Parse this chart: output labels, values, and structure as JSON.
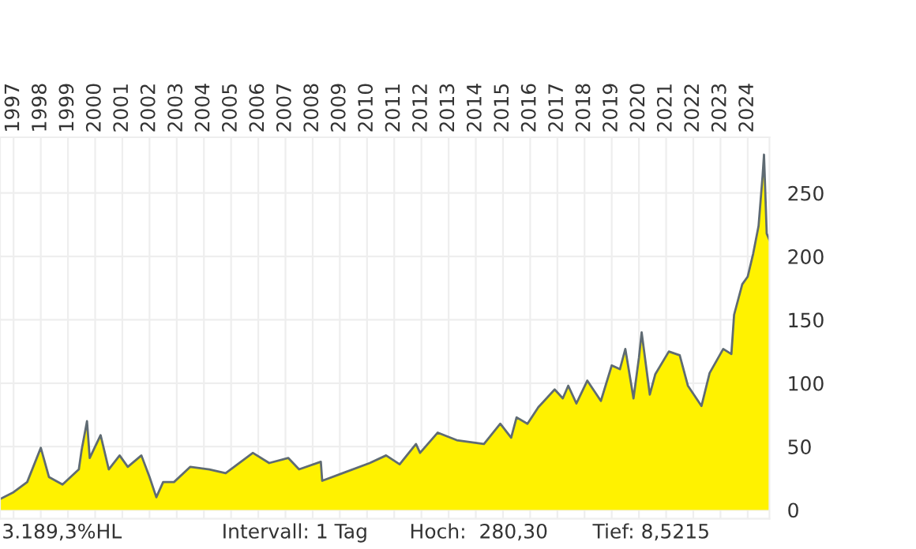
{
  "chart_data": {
    "type": "area",
    "x": [
      1997.0,
      1997.5,
      1998.0,
      1998.5,
      1998.8,
      1999.3,
      1999.9,
      2000.0,
      2000.2,
      2000.3,
      2000.7,
      2001.0,
      2001.4,
      2001.7,
      2002.2,
      2002.5,
      2002.75,
      2003.0,
      2003.4,
      2004.0,
      2004.7,
      2005.3,
      2006.3,
      2006.9,
      2007.6,
      2008.0,
      2008.8,
      2008.85,
      2009.6,
      2010.6,
      2011.2,
      2011.7,
      2012.3,
      2012.45,
      2013.1,
      2013.8,
      2014.8,
      2015.4,
      2015.8,
      2016.0,
      2016.4,
      2016.8,
      2017.4,
      2017.7,
      2017.9,
      2018.2,
      2018.6,
      2019.1,
      2019.5,
      2019.8,
      2020.0,
      2020.3,
      2020.5,
      2020.6,
      2020.9,
      2021.1,
      2021.6,
      2022.0,
      2022.3,
      2022.8,
      2023.1,
      2023.6,
      2023.9,
      2024.0,
      2024.3,
      2024.5,
      2024.7,
      2024.9,
      2025.05,
      2025.1,
      2025.2,
      2025.3
    ],
    "series": [
      {
        "color": "#fff200",
        "values": [
          8.5,
          14,
          22,
          49,
          26,
          20,
          32,
          47,
          70,
          41,
          59,
          32,
          43,
          34,
          43,
          26,
          10,
          22,
          22,
          34,
          32,
          29,
          45,
          37,
          41,
          32,
          38,
          23,
          29,
          37,
          43,
          36,
          52,
          45,
          61,
          55,
          52,
          68,
          57,
          73,
          68,
          81,
          95,
          88,
          98,
          84,
          102,
          86,
          114,
          111,
          127,
          88,
          120,
          140,
          91,
          107,
          125,
          122,
          98,
          82,
          108,
          127,
          123,
          154,
          178,
          184,
          202,
          224,
          264,
          280.3,
          218,
          213
        ]
      }
    ],
    "xlim": [
      1997.0,
      2025.3
    ],
    "xticks": [
      {
        "value": 1997.5,
        "label": "1997"
      },
      {
        "value": 1998.5,
        "label": "1998"
      },
      {
        "value": 1999.5,
        "label": "1999"
      },
      {
        "value": 2000.5,
        "label": "2000"
      },
      {
        "value": 2001.5,
        "label": "2001"
      },
      {
        "value": 2002.5,
        "label": "2002"
      },
      {
        "value": 2003.5,
        "label": "2003"
      },
      {
        "value": 2004.5,
        "label": "2004"
      },
      {
        "value": 2005.5,
        "label": "2005"
      },
      {
        "value": 2006.5,
        "label": "2006"
      },
      {
        "value": 2007.5,
        "label": "2007"
      },
      {
        "value": 2008.5,
        "label": "2008"
      },
      {
        "value": 2009.5,
        "label": "2009"
      },
      {
        "value": 2010.5,
        "label": "2010"
      },
      {
        "value": 2011.5,
        "label": "2011"
      },
      {
        "value": 2012.5,
        "label": "2012"
      },
      {
        "value": 2013.5,
        "label": "2013"
      },
      {
        "value": 2014.5,
        "label": "2014"
      },
      {
        "value": 2015.5,
        "label": "2015"
      },
      {
        "value": 2016.5,
        "label": "2016"
      },
      {
        "value": 2017.5,
        "label": "2017"
      },
      {
        "value": 2018.5,
        "label": "2018"
      },
      {
        "value": 2019.5,
        "label": "2019"
      },
      {
        "value": 2020.5,
        "label": "2020"
      },
      {
        "value": 2021.5,
        "label": "2021"
      },
      {
        "value": 2022.5,
        "label": "2022"
      },
      {
        "value": 2023.5,
        "label": "2023"
      },
      {
        "value": 2024.5,
        "label": "2024"
      }
    ],
    "ylim": [
      -7,
      294
    ],
    "yticks": [
      0,
      50,
      100,
      150,
      200,
      250
    ],
    "grid": true,
    "annotations": [
      "3.189,3%HL",
      "Intervall: 1 Tag",
      "Hoch:  280,30",
      "Tief: 8,5215"
    ]
  }
}
